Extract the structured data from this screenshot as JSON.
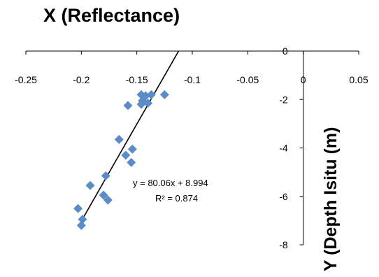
{
  "chart_data": {
    "type": "scatter",
    "title": "X (Reflectance)",
    "ylabel": "Y (Depth Isitu (m)",
    "xlabel": "",
    "xlim": [
      -0.25,
      0.05
    ],
    "ylim": [
      -8,
      0
    ],
    "x_ticks": [
      -0.25,
      -0.2,
      -0.15,
      -0.1,
      -0.05,
      0,
      0.05
    ],
    "x_tick_labels": [
      "-0.25",
      "-0.2",
      "-0.15",
      "-0.1",
      "-0.05",
      "0",
      "0.05"
    ],
    "y_ticks": [
      0,
      -2,
      -4,
      -6,
      -8
    ],
    "y_tick_labels": [
      "0",
      "-2",
      "-4",
      "-6",
      "-8"
    ],
    "x_axis_position": "top",
    "y_axis_position": "x=0",
    "grid": false,
    "legend": "none",
    "marker_color": "#5b8cc8",
    "trendline_color": "#000000",
    "points": [
      {
        "x": -0.146,
        "y": -1.8
      },
      {
        "x": -0.142,
        "y": -1.85
      },
      {
        "x": -0.137,
        "y": -1.8
      },
      {
        "x": -0.125,
        "y": -1.8
      },
      {
        "x": -0.145,
        "y": -2.05
      },
      {
        "x": -0.146,
        "y": -2.2
      },
      {
        "x": -0.14,
        "y": -2.15
      },
      {
        "x": -0.158,
        "y": -2.25
      },
      {
        "x": -0.166,
        "y": -3.65
      },
      {
        "x": -0.154,
        "y": -4.05
      },
      {
        "x": -0.16,
        "y": -4.3
      },
      {
        "x": -0.155,
        "y": -4.6
      },
      {
        "x": -0.178,
        "y": -5.15
      },
      {
        "x": -0.192,
        "y": -5.55
      },
      {
        "x": -0.18,
        "y": -5.95
      },
      {
        "x": -0.176,
        "y": -6.15
      },
      {
        "x": -0.203,
        "y": -6.5
      },
      {
        "x": -0.199,
        "y": -6.95
      },
      {
        "x": -0.2,
        "y": -7.2
      }
    ],
    "trendline": {
      "slope": 80.06,
      "intercept": 8.994,
      "x_range": [
        -0.2,
        -0.1123
      ],
      "equation_label": "y = 80.06x + 8.994",
      "r2_label": "R² = 0.874"
    }
  }
}
